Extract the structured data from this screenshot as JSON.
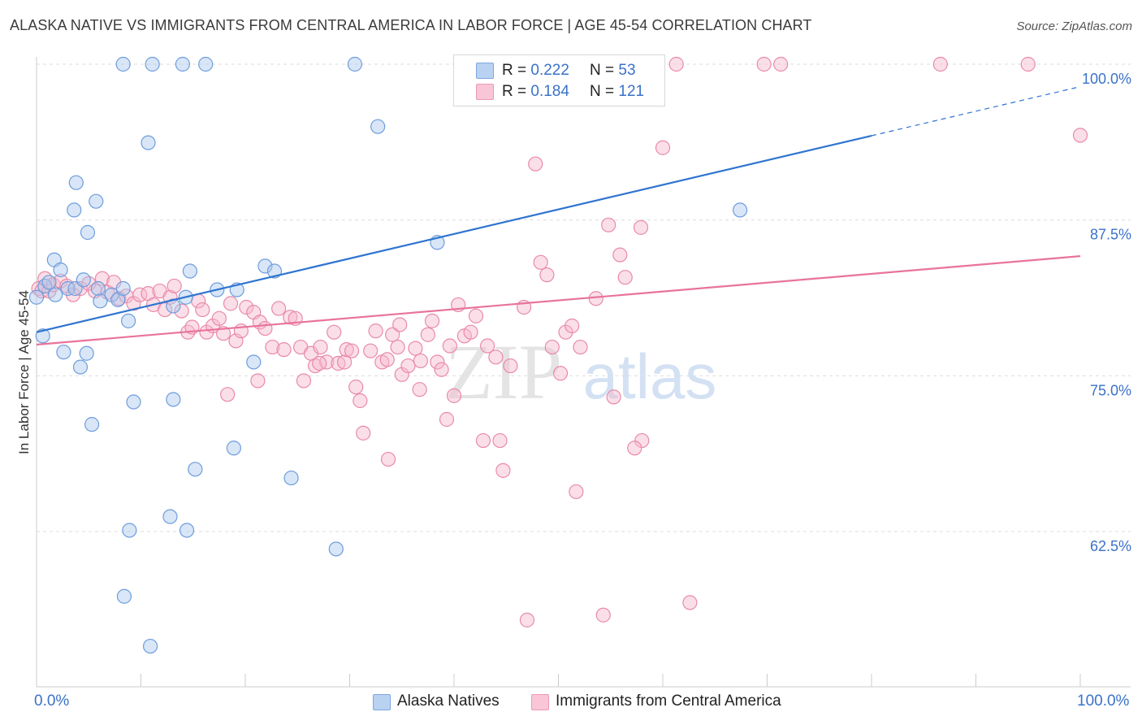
{
  "header": {
    "title": "ALASKA NATIVE VS IMMIGRANTS FROM CENTRAL AMERICA IN LABOR FORCE | AGE 45-54 CORRELATION CHART",
    "source": "Source: ZipAtlas.com"
  },
  "watermark": {
    "zip": "ZIP",
    "atlas": "atlas"
  },
  "legend": {
    "rows": [
      {
        "r_label": "R = ",
        "r_value": "0.222",
        "n_label": "N = ",
        "n_value": "53"
      },
      {
        "r_label": "R = ",
        "r_value": "0.184",
        "n_label": "N = ",
        "n_value": "121"
      }
    ]
  },
  "chart_data": {
    "type": "scatter",
    "title": "ALASKA NATIVE VS IMMIGRANTS FROM CENTRAL AMERICA IN LABOR FORCE | AGE 45-54 CORRELATION CHART",
    "xlabel": "",
    "ylabel": "In Labor Force | Age 45-54",
    "xlim": [
      0,
      100
    ],
    "ylim": [
      51,
      100.5
    ],
    "x_tick_labels": [
      "0.0%",
      "100.0%"
    ],
    "y_ticks": [
      62.5,
      75.0,
      87.5,
      100.0
    ],
    "y_tick_labels": [
      "62.5%",
      "75.0%",
      "87.5%",
      "100.0%"
    ],
    "grid": true,
    "colors": {
      "blue": "#a9c8ee",
      "blue_edge": "#6f9ddc",
      "blue_line": "#2f74d0",
      "pink": "#f6b9cc",
      "pink_edge": "#e98aa9",
      "pink_line": "#e8739b",
      "axis_text": "#3a72c9"
    },
    "series": [
      {
        "name": "Alaska Natives",
        "r": 0.222,
        "n": 53,
        "trend": {
          "x0": 0,
          "y0": 78.5,
          "x1": 100,
          "y1": 98.2,
          "solid_until_x": 80
        },
        "points": [
          [
            0,
            81.3
          ],
          [
            0.6,
            78.2
          ],
          [
            0.8,
            82.2
          ],
          [
            1.2,
            82.5
          ],
          [
            1.8,
            81.5
          ],
          [
            1.7,
            84.3
          ],
          [
            2.3,
            83.5
          ],
          [
            2.6,
            76.9
          ],
          [
            3.0,
            82.0
          ],
          [
            3.7,
            82.0
          ],
          [
            3.6,
            88.3
          ],
          [
            3.8,
            90.5
          ],
          [
            4.2,
            75.7
          ],
          [
            4.5,
            82.7
          ],
          [
            4.8,
            76.8
          ],
          [
            4.9,
            86.5
          ],
          [
            5.3,
            71.1
          ],
          [
            5.7,
            89.0
          ],
          [
            5.9,
            82.0
          ],
          [
            6.1,
            81.0
          ],
          [
            7.2,
            81.5
          ],
          [
            7.8,
            81.1
          ],
          [
            8.3,
            82.0
          ],
          [
            8.3,
            100.0
          ],
          [
            8.4,
            57.3
          ],
          [
            8.8,
            79.4
          ],
          [
            8.9,
            62.6
          ],
          [
            9.3,
            72.9
          ],
          [
            10.7,
            93.7
          ],
          [
            10.9,
            53.3
          ],
          [
            11.1,
            100.0
          ],
          [
            12.8,
            63.7
          ],
          [
            13.1,
            73.1
          ],
          [
            13.1,
            80.6
          ],
          [
            14.0,
            100.0
          ],
          [
            14.3,
            81.3
          ],
          [
            14.4,
            62.6
          ],
          [
            14.7,
            83.4
          ],
          [
            15.2,
            67.5
          ],
          [
            16.2,
            100.0
          ],
          [
            17.3,
            81.9
          ],
          [
            18.9,
            69.2
          ],
          [
            19.2,
            81.9
          ],
          [
            20.8,
            76.1
          ],
          [
            21.9,
            83.8
          ],
          [
            22.8,
            83.4
          ],
          [
            24.4,
            66.8
          ],
          [
            28.7,
            61.1
          ],
          [
            30.5,
            100.0
          ],
          [
            32.7,
            95.0
          ],
          [
            38.4,
            85.7
          ],
          [
            59.4,
            100.0
          ],
          [
            67.4,
            88.3
          ]
        ]
      },
      {
        "name": "Immigrants from Central America",
        "r": 0.184,
        "n": 121,
        "trend": {
          "x0": 0,
          "y0": 77.5,
          "x1": 100,
          "y1": 84.6
        },
        "points": [
          [
            0.2,
            82.0
          ],
          [
            0.5,
            81.8
          ],
          [
            0.8,
            82.8
          ],
          [
            1.2,
            81.8
          ],
          [
            1.6,
            82.3
          ],
          [
            2.3,
            82.6
          ],
          [
            2.9,
            82.2
          ],
          [
            3.5,
            81.5
          ],
          [
            4.2,
            82.0
          ],
          [
            5.0,
            82.4
          ],
          [
            5.6,
            81.8
          ],
          [
            6.3,
            82.8
          ],
          [
            6.8,
            81.7
          ],
          [
            7.4,
            82.5
          ],
          [
            7.9,
            81.2
          ],
          [
            8.6,
            81.4
          ],
          [
            9.3,
            80.8
          ],
          [
            9.9,
            81.5
          ],
          [
            10.7,
            81.6
          ],
          [
            11.2,
            80.7
          ],
          [
            11.8,
            81.8
          ],
          [
            12.3,
            80.3
          ],
          [
            12.8,
            81.3
          ],
          [
            13.2,
            82.2
          ],
          [
            13.9,
            80.2
          ],
          [
            14.5,
            78.5
          ],
          [
            14.9,
            78.9
          ],
          [
            15.5,
            81.0
          ],
          [
            15.9,
            80.3
          ],
          [
            16.3,
            78.5
          ],
          [
            16.9,
            79.0
          ],
          [
            17.5,
            79.6
          ],
          [
            17.9,
            78.4
          ],
          [
            18.6,
            80.8
          ],
          [
            19.1,
            77.8
          ],
          [
            19.6,
            78.6
          ],
          [
            20.1,
            80.5
          ],
          [
            20.8,
            80.1
          ],
          [
            21.4,
            79.3
          ],
          [
            21.9,
            78.8
          ],
          [
            22.6,
            77.3
          ],
          [
            23.2,
            80.4
          ],
          [
            23.7,
            77.1
          ],
          [
            24.3,
            79.7
          ],
          [
            24.8,
            79.6
          ],
          [
            25.3,
            77.3
          ],
          [
            25.6,
            74.6
          ],
          [
            26.3,
            76.8
          ],
          [
            26.7,
            75.8
          ],
          [
            27.2,
            77.3
          ],
          [
            27.8,
            76.1
          ],
          [
            28.5,
            78.5
          ],
          [
            28.9,
            76.0
          ],
          [
            29.5,
            76.1
          ],
          [
            29.7,
            77.1
          ],
          [
            30.2,
            77.0
          ],
          [
            30.6,
            74.1
          ],
          [
            31.0,
            73.0
          ],
          [
            31.3,
            70.4
          ],
          [
            32.0,
            77.0
          ],
          [
            32.5,
            78.6
          ],
          [
            33.1,
            76.1
          ],
          [
            33.6,
            76.3
          ],
          [
            34.1,
            78.3
          ],
          [
            34.6,
            77.3
          ],
          [
            35.0,
            75.1
          ],
          [
            35.6,
            75.8
          ],
          [
            36.3,
            77.2
          ],
          [
            36.8,
            76.2
          ],
          [
            37.5,
            78.3
          ],
          [
            37.9,
            79.4
          ],
          [
            38.4,
            76.1
          ],
          [
            38.8,
            75.5
          ],
          [
            39.3,
            71.5
          ],
          [
            39.6,
            77.4
          ],
          [
            40.0,
            73.4
          ],
          [
            40.4,
            80.7
          ],
          [
            41.0,
            78.2
          ],
          [
            41.6,
            78.5
          ],
          [
            42.1,
            79.8
          ],
          [
            42.8,
            69.8
          ],
          [
            43.2,
            77.4
          ],
          [
            44.0,
            76.5
          ],
          [
            44.4,
            69.8
          ],
          [
            44.7,
            67.4
          ],
          [
            45.4,
            75.8
          ],
          [
            46.7,
            80.5
          ],
          [
            47.8,
            92.0
          ],
          [
            48.3,
            84.1
          ],
          [
            48.9,
            83.1
          ],
          [
            49.4,
            77.3
          ],
          [
            50.2,
            75.2
          ],
          [
            50.7,
            78.5
          ],
          [
            51.3,
            79.0
          ],
          [
            51.7,
            65.7
          ],
          [
            52.1,
            77.3
          ],
          [
            53.6,
            81.2
          ],
          [
            54.3,
            55.8
          ],
          [
            54.8,
            87.1
          ],
          [
            55.3,
            73.3
          ],
          [
            55.9,
            84.7
          ],
          [
            56.4,
            82.9
          ],
          [
            57.9,
            86.9
          ],
          [
            58.0,
            69.8
          ],
          [
            59.2,
            100.0
          ],
          [
            60.0,
            93.3
          ],
          [
            61.3,
            100.0
          ],
          [
            62.6,
            56.8
          ],
          [
            69.7,
            100.0
          ],
          [
            71.3,
            100.0
          ],
          [
            86.6,
            100.0
          ],
          [
            95.0,
            100.0
          ],
          [
            100.0,
            94.3
          ],
          [
            33.7,
            68.3
          ],
          [
            27.1,
            76.0
          ],
          [
            47.0,
            55.4
          ],
          [
            34.8,
            79.1
          ],
          [
            36.7,
            73.9
          ],
          [
            57.3,
            69.2
          ],
          [
            21.2,
            74.6
          ],
          [
            18.3,
            73.5
          ]
        ]
      }
    ]
  }
}
